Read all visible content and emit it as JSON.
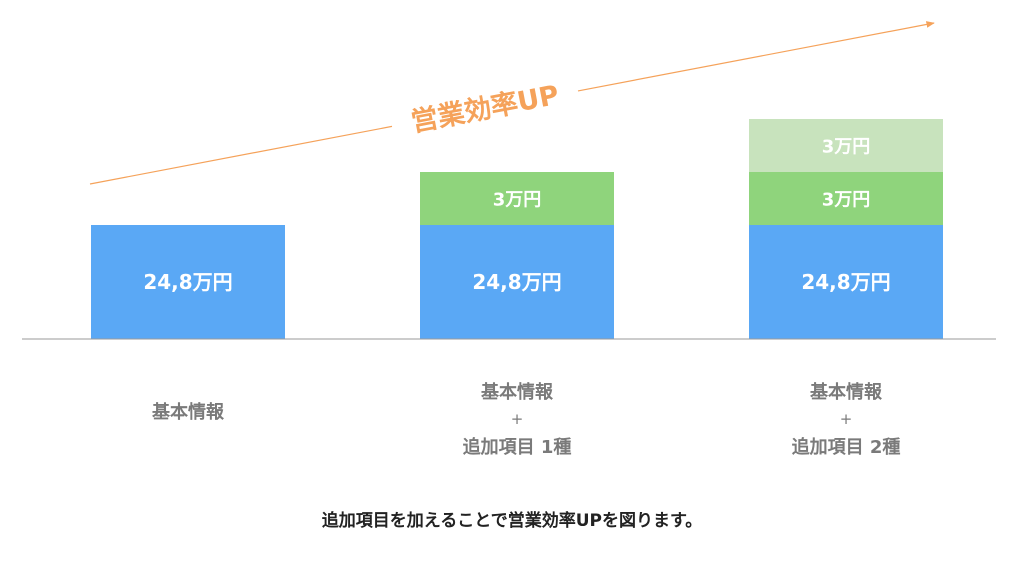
{
  "chart_data": {
    "type": "bar",
    "stacked": true,
    "unit": "万円",
    "categories": [
      [
        "基本情報"
      ],
      [
        "基本情報",
        "+",
        "追加項目 1種"
      ],
      [
        "基本情報",
        "+",
        "追加項目 2種"
      ]
    ],
    "segments": [
      [
        {
          "value": 24.8,
          "label": "24,8万円",
          "color": "#5aa8f5"
        }
      ],
      [
        {
          "value": 24.8,
          "label": "24,8万円",
          "color": "#5aa8f5"
        },
        {
          "value": 3,
          "label": "3万円",
          "color": "#8fd47c"
        }
      ],
      [
        {
          "value": 24.8,
          "label": "24,8万円",
          "color": "#5aa8f5"
        },
        {
          "value": 3,
          "label": "3万円",
          "color": "#8fd47c"
        },
        {
          "value": 3,
          "label": "3万円",
          "color": "#c8e3bd"
        }
      ]
    ],
    "annotation": {
      "text": "営業効率UP",
      "color": "#f5a25a"
    },
    "grid": false,
    "legend": "none"
  },
  "caption": "追加項目を加えることで営業効率UPを図ります。",
  "colors": {
    "axis": "#9a9a9a",
    "category_text": "#7a7a7a",
    "bar_text": "#ffffff"
  }
}
